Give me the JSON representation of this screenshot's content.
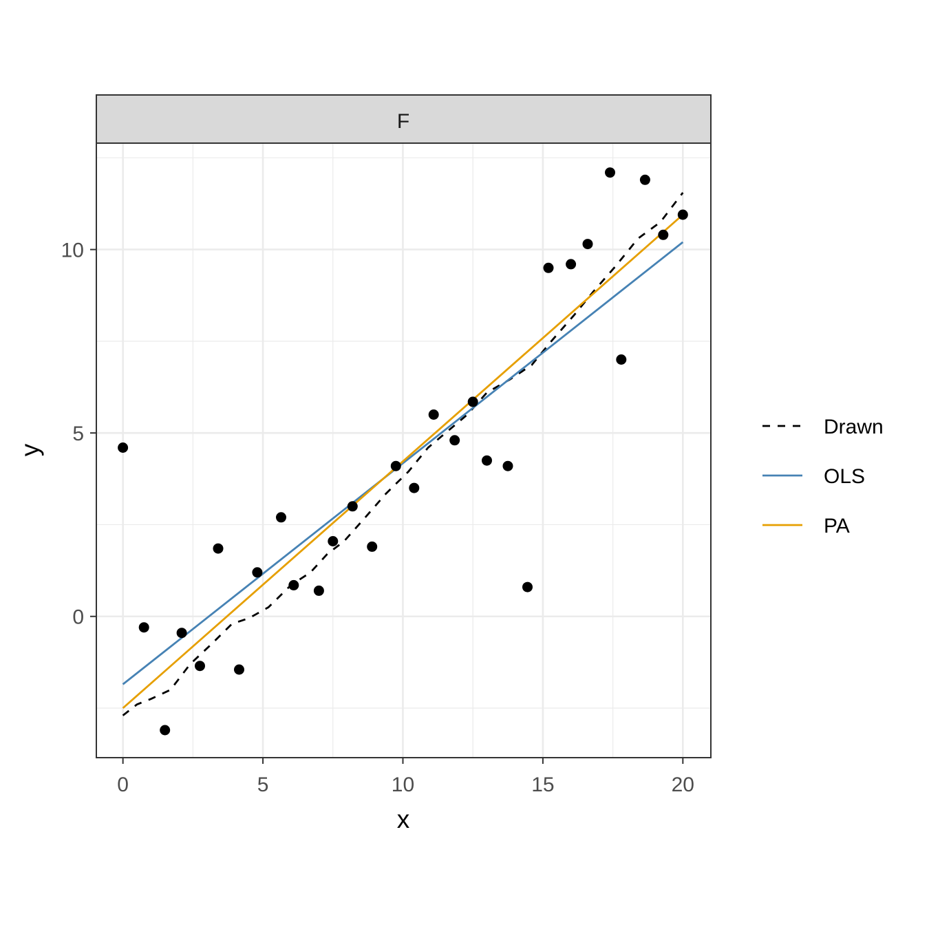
{
  "chart_data": {
    "type": "scatter",
    "facet_label": "F",
    "xlabel": "x",
    "ylabel": "y",
    "xlim": [
      -0.95,
      21
    ],
    "ylim": [
      -3.85,
      12.9
    ],
    "xticks": [
      0,
      5,
      10,
      15,
      20
    ],
    "yticks": [
      0,
      5,
      10
    ],
    "xtick_labels": [
      "0",
      "5",
      "10",
      "15",
      "20"
    ],
    "ytick_labels": [
      "0",
      "5",
      "10"
    ],
    "grid": true,
    "legend_position": "right",
    "points": {
      "color": "#000000",
      "x": [
        0,
        0.75,
        1.5,
        2.1,
        2.75,
        3.4,
        4.15,
        4.8,
        5.65,
        6.1,
        7.0,
        7.5,
        8.2,
        8.9,
        9.75,
        10.4,
        11.1,
        11.85,
        12.5,
        13.0,
        13.75,
        14.45,
        15.2,
        16.0,
        16.6,
        17.4,
        17.8,
        18.65,
        19.3,
        20.0
      ],
      "y": [
        4.6,
        -0.3,
        -3.1,
        -0.45,
        -1.35,
        1.85,
        -1.45,
        1.2,
        2.7,
        0.85,
        0.7,
        2.05,
        3.0,
        1.9,
        4.1,
        3.5,
        5.5,
        4.8,
        5.85,
        4.25,
        4.1,
        0.8,
        9.5,
        9.6,
        10.15,
        12.1,
        7.0,
        11.9,
        10.4,
        10.95
      ]
    },
    "series": [
      {
        "name": "Drawn",
        "style": "dashed",
        "color": "#000000",
        "x": [
          0,
          0.5,
          1.0,
          1.7,
          2.4,
          3.1,
          3.9,
          4.5,
          5.2,
          6.0,
          6.7,
          7.3,
          7.9,
          8.6,
          9.4,
          10.2,
          10.9,
          11.6,
          12.3,
          13.0,
          13.8,
          14.6,
          15.3,
          16.1,
          16.8,
          17.6,
          18.4,
          19.2,
          20.0
        ],
        "y": [
          -2.7,
          -2.4,
          -2.25,
          -2.0,
          -1.3,
          -0.8,
          -0.2,
          -0.05,
          0.25,
          0.85,
          1.2,
          1.7,
          2.05,
          2.65,
          3.35,
          3.95,
          4.6,
          5.05,
          5.5,
          6.1,
          6.45,
          6.85,
          7.5,
          8.2,
          8.85,
          9.55,
          10.3,
          10.75,
          11.55
        ]
      },
      {
        "name": "OLS",
        "style": "solid",
        "color": "#4682B4",
        "x": [
          0,
          20
        ],
        "y": [
          -1.85,
          10.2
        ]
      },
      {
        "name": "PA",
        "style": "solid",
        "color": "#E69F00",
        "x": [
          0,
          20
        ],
        "y": [
          -2.5,
          10.95
        ]
      }
    ]
  }
}
